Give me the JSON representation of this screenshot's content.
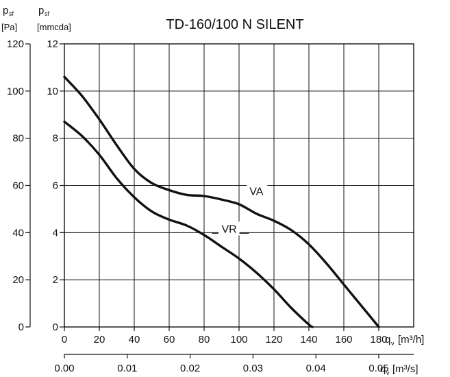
{
  "chart_data": {
    "type": "line",
    "title": "TD-160/100 N SILENT",
    "left_axis": {
      "symbol": "p",
      "subscript": "sf",
      "unit": "[Pa]",
      "ticks": [
        0,
        20,
        40,
        60,
        80,
        100,
        120
      ],
      "ylim": [
        0,
        120
      ]
    },
    "right_axis": {
      "symbol": "p",
      "subscript": "sf",
      "unit": "[mmcda]",
      "ticks": [
        0,
        2,
        4,
        6,
        8,
        10,
        12
      ],
      "ylim": [
        0,
        12
      ]
    },
    "x_axis": {
      "symbol": "q",
      "subscript": "v",
      "unit": "[m³/h]",
      "ticks": [
        0,
        20,
        40,
        60,
        80,
        100,
        120,
        140,
        160,
        180
      ],
      "xlim": [
        0,
        200
      ]
    },
    "x_axis_secondary": {
      "symbol": "q",
      "subscript": "v",
      "unit": "[m³/s]",
      "ticks": [
        "0.00",
        "0.01",
        "0.02",
        "0.03",
        "0.04",
        "0.05"
      ],
      "values": [
        0,
        0.01,
        0.02,
        0.03,
        0.04,
        0.05
      ]
    },
    "grid": true,
    "series": [
      {
        "name": "VA",
        "x": [
          0,
          10,
          20,
          30,
          40,
          50,
          60,
          70,
          80,
          90,
          100,
          110,
          120,
          130,
          140,
          150,
          160,
          170,
          180
        ],
        "y": [
          106,
          98,
          88,
          77,
          67,
          61,
          58,
          56,
          55.5,
          54,
          52,
          48,
          45,
          41,
          35,
          27,
          18,
          9,
          0
        ]
      },
      {
        "name": "VR",
        "x": [
          0,
          10,
          20,
          30,
          40,
          50,
          60,
          70,
          80,
          90,
          100,
          110,
          120,
          130,
          140,
          142
        ],
        "y": [
          87,
          81,
          73,
          63,
          55,
          49,
          45.5,
          43,
          39,
          34,
          29,
          23,
          16,
          8,
          1,
          0
        ]
      }
    ],
    "series_label_anchor": [
      {
        "name": "VA",
        "x": 106,
        "y": 56
      },
      {
        "name": "VR",
        "x": 90,
        "y": 40
      }
    ]
  }
}
